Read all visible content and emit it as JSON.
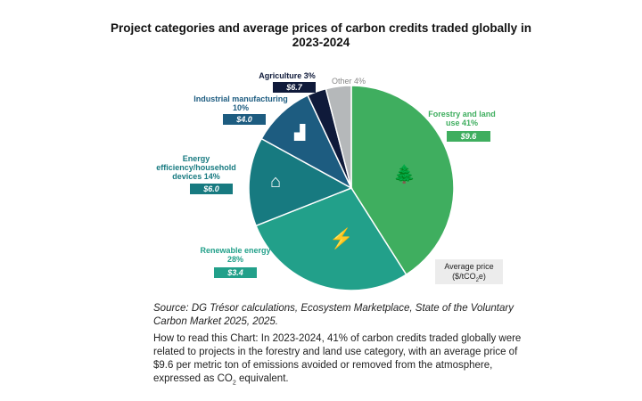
{
  "chart_data": {
    "type": "pie",
    "title": "Project categories and average prices of carbon credits traded globally in 2023-2024",
    "slices": [
      {
        "name": "Forestry and land use",
        "label": "Forestry and land use 41%",
        "percent": 41,
        "price": "$9.6",
        "color": "#3fae5f",
        "icon": "trees-icon"
      },
      {
        "name": "Renewable energy",
        "label": "Renewable energy 28%",
        "percent": 28,
        "price": "$3.4",
        "color": "#22a08a",
        "icon": "lightning-icon"
      },
      {
        "name": "Energy efficiency/household devices",
        "label": "Energy efficiency/household devices 14%",
        "percent": 14,
        "price": "$6.0",
        "color": "#177a80",
        "icon": "house-icon"
      },
      {
        "name": "Industrial manufacturing",
        "label": "Industrial manufacturing 10%",
        "percent": 10,
        "price": "$4.0",
        "color": "#1d5c80",
        "icon": "factory-icon"
      },
      {
        "name": "Agriculture",
        "label": "Agriculture 3%",
        "percent": 3,
        "price": "$6.7",
        "color": "#0f1a3a",
        "icon": ""
      },
      {
        "name": "Other",
        "label": "Other 4%",
        "percent": 4,
        "price": "",
        "color": "#b5b8ba",
        "icon": ""
      }
    ],
    "legend_note": "Average price",
    "legend_unit": "($/tCO",
    "legend_unit_sub": "2",
    "legend_unit_end": "e)"
  },
  "source": "Source: DG Trésor calculations, Ecosystem Marketplace, State of the Voluntary Carbon Market 2025, 2025.",
  "howto": "How to read this Chart: In 2023-2024, 41% of carbon credits traded globally were related to projects in the forestry and land use category, with an average price of $9.6 per metric ton of emissions avoided or removed from the atmosphere, expressed as CO",
  "howto_sub": "2",
  "howto_end": " equivalent."
}
